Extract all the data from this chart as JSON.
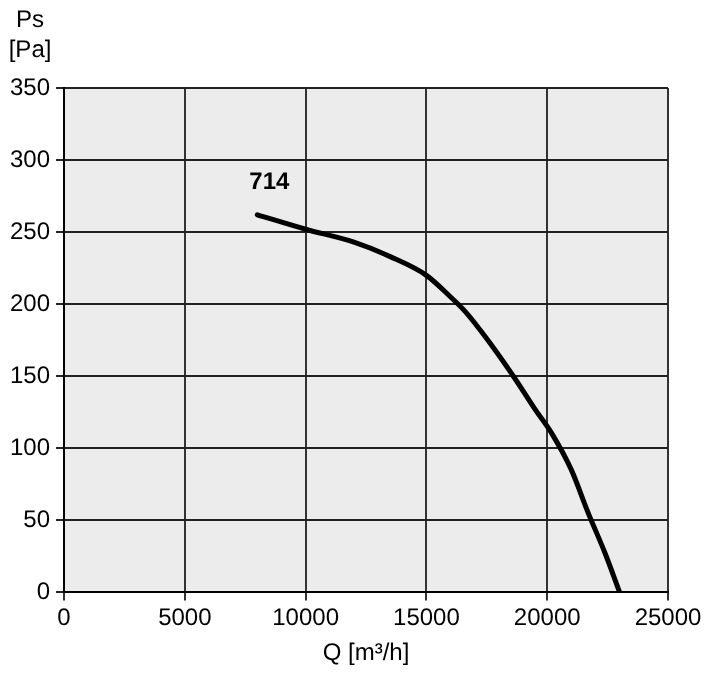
{
  "chart_data": {
    "type": "line",
    "xlabel": "Q [m³/h]",
    "ylabel": "Ps\n[Pa]",
    "x": [
      8000,
      10000,
      12000,
      13500,
      15000,
      16000,
      16600,
      17500,
      18600,
      19500,
      20200,
      21000,
      21700,
      22400,
      23000
    ],
    "series": [
      {
        "name": "714",
        "color": "#000000",
        "values": [
          262,
          252,
          243,
          233,
          220,
          205,
          195,
          176,
          150,
          127,
          110,
          85,
          55,
          27,
          0
        ]
      }
    ],
    "xlim": [
      0,
      25000
    ],
    "xticks": [
      0,
      5000,
      10000,
      15000,
      20000,
      25000
    ],
    "ylim": [
      0,
      350
    ],
    "yticks": [
      0,
      50,
      100,
      150,
      200,
      250,
      300,
      350
    ],
    "grid": true,
    "legend": false,
    "marker": "none",
    "line_style": "solid"
  }
}
